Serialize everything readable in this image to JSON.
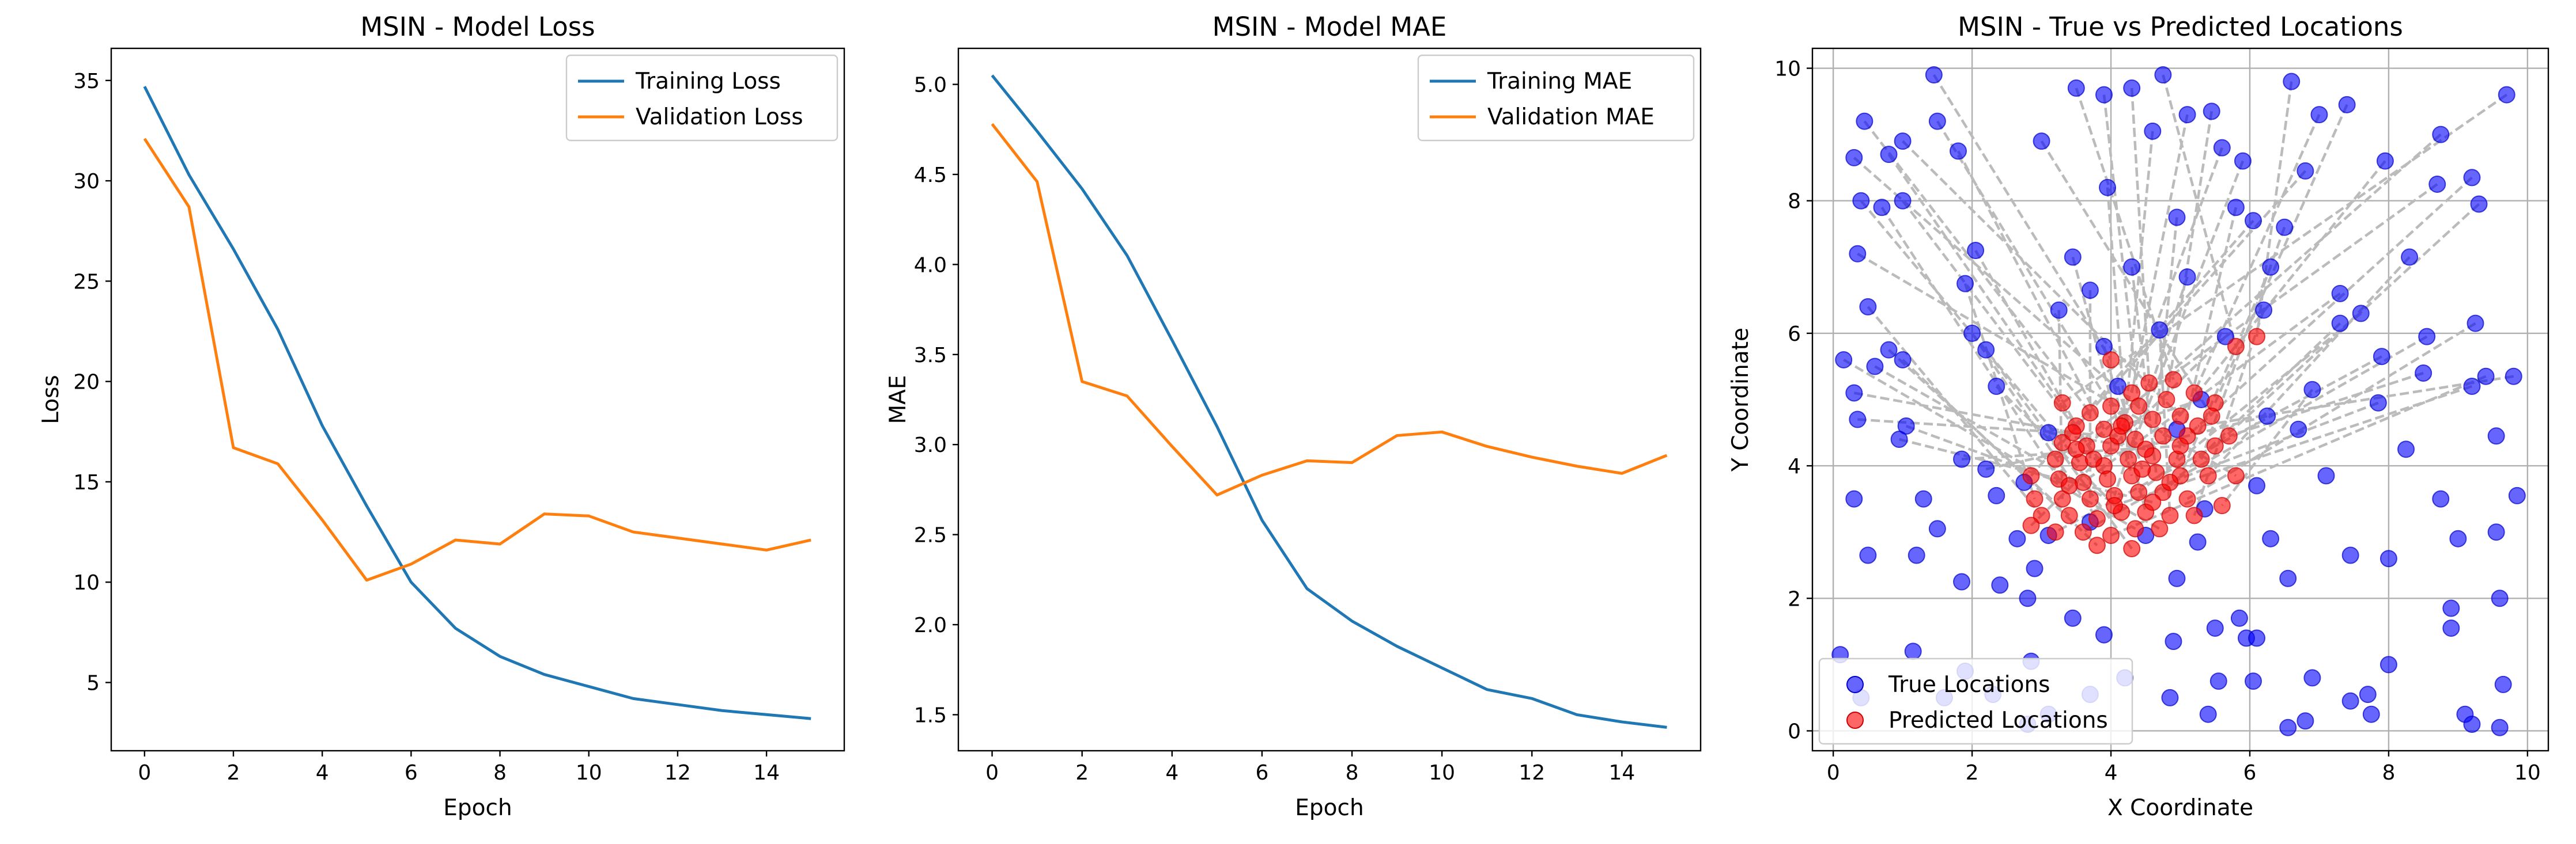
{
  "chart_data": [
    {
      "type": "line",
      "title": "MSIN - Model Loss",
      "xlabel": "Epoch",
      "ylabel": "Loss",
      "xlim": [
        -0.75,
        15.75
      ],
      "ylim": [
        1.6,
        36.6
      ],
      "xticks": [
        0,
        2,
        4,
        6,
        8,
        10,
        12,
        14
      ],
      "yticks": [
        5,
        10,
        15,
        20,
        25,
        30,
        35
      ],
      "grid": false,
      "legend": "top-right",
      "x": [
        0,
        1,
        2,
        3,
        4,
        5,
        6,
        7,
        8,
        9,
        10,
        11,
        12,
        13,
        14,
        15
      ],
      "series": [
        {
          "name": "Training Loss",
          "color": "#1f77b4",
          "values": [
            34.7,
            30.3,
            26.6,
            22.6,
            17.8,
            13.8,
            10.0,
            7.7,
            6.3,
            5.4,
            4.8,
            4.2,
            3.9,
            3.6,
            3.4,
            3.2
          ]
        },
        {
          "name": "Validation Loss",
          "color": "#ff7f0e",
          "values": [
            32.1,
            28.7,
            16.7,
            15.9,
            13.1,
            10.1,
            10.9,
            12.1,
            11.9,
            13.4,
            13.3,
            12.5,
            12.2,
            11.9,
            11.6,
            12.1
          ]
        }
      ]
    },
    {
      "type": "line",
      "title": "MSIN - Model MAE",
      "xlabel": "Epoch",
      "ylabel": "MAE",
      "xlim": [
        -0.75,
        15.75
      ],
      "ylim": [
        1.3,
        5.2
      ],
      "xticks": [
        0,
        2,
        4,
        6,
        8,
        10,
        12,
        14
      ],
      "yticks": [
        1.5,
        2.0,
        2.5,
        3.0,
        3.5,
        4.0,
        4.5,
        5.0
      ],
      "ytick_labels": [
        "1.5",
        "2.0",
        "2.5",
        "3.0",
        "3.5",
        "4.0",
        "4.5",
        "5.0"
      ],
      "grid": false,
      "legend": "top-right",
      "x": [
        0,
        1,
        2,
        3,
        4,
        5,
        6,
        7,
        8,
        9,
        10,
        11,
        12,
        13,
        14,
        15
      ],
      "series": [
        {
          "name": "Training MAE",
          "color": "#1f77b4",
          "values": [
            5.05,
            4.74,
            4.42,
            4.05,
            3.58,
            3.1,
            2.58,
            2.2,
            2.02,
            1.88,
            1.76,
            1.64,
            1.59,
            1.5,
            1.46,
            1.43
          ]
        },
        {
          "name": "Validation MAE",
          "color": "#ff7f0e",
          "values": [
            4.78,
            4.46,
            3.35,
            3.27,
            2.99,
            2.72,
            2.83,
            2.91,
            2.9,
            3.05,
            3.07,
            2.99,
            2.93,
            2.88,
            2.84,
            2.94
          ]
        }
      ]
    },
    {
      "type": "scatter",
      "title": "MSIN - True vs Predicted Locations",
      "xlabel": "X Coordinate",
      "ylabel": "Y Coordinate",
      "xlim": [
        -0.3,
        10.3
      ],
      "ylim": [
        -0.3,
        10.3
      ],
      "xticks": [
        0,
        2,
        4,
        6,
        8,
        10
      ],
      "yticks": [
        0,
        2,
        4,
        6,
        8,
        10
      ],
      "grid": true,
      "legend": "bottom-left",
      "series": [
        {
          "name": "True Locations",
          "color": "#0000ff",
          "points": [
            [
              1.45,
              9.9
            ],
            [
              4.75,
              9.9
            ],
            [
              6.6,
              9.8
            ],
            [
              9.7,
              9.6
            ],
            [
              4.3,
              9.7
            ],
            [
              3.5,
              9.7
            ],
            [
              5.1,
              9.3
            ],
            [
              7.0,
              9.3
            ],
            [
              0.45,
              9.2
            ],
            [
              1.5,
              9.2
            ],
            [
              3.9,
              9.6
            ],
            [
              5.45,
              9.35
            ],
            [
              7.4,
              9.45
            ],
            [
              0.8,
              8.7
            ],
            [
              1.8,
              8.75
            ],
            [
              4.6,
              9.05
            ],
            [
              0.3,
              8.65
            ],
            [
              1.0,
              8.9
            ],
            [
              3.0,
              8.9
            ],
            [
              6.8,
              8.45
            ],
            [
              8.75,
              9.0
            ],
            [
              5.6,
              8.8
            ],
            [
              5.9,
              8.6
            ],
            [
              7.95,
              8.6
            ],
            [
              9.2,
              8.35
            ],
            [
              9.3,
              7.95
            ],
            [
              8.7,
              8.25
            ],
            [
              0.4,
              8.0
            ],
            [
              1.0,
              8.0
            ],
            [
              3.95,
              8.2
            ],
            [
              4.95,
              7.75
            ],
            [
              5.8,
              7.9
            ],
            [
              6.5,
              7.6
            ],
            [
              6.05,
              7.7
            ],
            [
              0.7,
              7.9
            ],
            [
              7.3,
              6.6
            ],
            [
              2.05,
              7.25
            ],
            [
              3.45,
              7.15
            ],
            [
              4.3,
              7.0
            ],
            [
              6.3,
              7.0
            ],
            [
              8.3,
              7.15
            ],
            [
              0.35,
              7.2
            ],
            [
              1.9,
              6.75
            ],
            [
              3.25,
              6.35
            ],
            [
              3.7,
              6.65
            ],
            [
              5.1,
              6.85
            ],
            [
              7.6,
              6.3
            ],
            [
              7.3,
              6.15
            ],
            [
              9.25,
              6.15
            ],
            [
              0.5,
              6.4
            ],
            [
              0.8,
              5.75
            ],
            [
              2.0,
              6.0
            ],
            [
              2.35,
              5.2
            ],
            [
              3.9,
              5.8
            ],
            [
              4.7,
              6.05
            ],
            [
              6.2,
              6.35
            ],
            [
              7.9,
              5.65
            ],
            [
              8.55,
              5.95
            ],
            [
              9.4,
              5.35
            ],
            [
              0.15,
              5.6
            ],
            [
              0.6,
              5.5
            ],
            [
              1.0,
              5.6
            ],
            [
              2.2,
              5.75
            ],
            [
              5.65,
              5.95
            ],
            [
              6.9,
              5.15
            ],
            [
              8.5,
              5.4
            ],
            [
              9.8,
              5.35
            ],
            [
              0.3,
              5.1
            ],
            [
              0.35,
              4.7
            ],
            [
              1.05,
              4.6
            ],
            [
              4.1,
              5.2
            ],
            [
              5.3,
              5.0
            ],
            [
              6.25,
              4.75
            ],
            [
              7.85,
              4.95
            ],
            [
              9.2,
              5.2
            ],
            [
              0.95,
              4.4
            ],
            [
              1.85,
              4.1
            ],
            [
              2.2,
              3.95
            ],
            [
              3.1,
              4.5
            ],
            [
              4.95,
              4.55
            ],
            [
              6.7,
              4.55
            ],
            [
              8.25,
              4.25
            ],
            [
              9.55,
              4.45
            ],
            [
              0.3,
              3.5
            ],
            [
              1.3,
              3.5
            ],
            [
              2.35,
              3.55
            ],
            [
              2.75,
              3.75
            ],
            [
              3.7,
              3.15
            ],
            [
              5.35,
              3.35
            ],
            [
              6.1,
              3.7
            ],
            [
              7.1,
              3.85
            ],
            [
              8.75,
              3.5
            ],
            [
              9.85,
              3.55
            ],
            [
              1.5,
              3.05
            ],
            [
              2.65,
              2.9
            ],
            [
              3.1,
              2.95
            ],
            [
              4.5,
              2.95
            ],
            [
              5.25,
              2.85
            ],
            [
              6.3,
              2.9
            ],
            [
              8.0,
              2.6
            ],
            [
              9.55,
              3.0
            ],
            [
              0.5,
              2.65
            ],
            [
              1.2,
              2.65
            ],
            [
              2.9,
              2.45
            ],
            [
              4.95,
              2.3
            ],
            [
              6.55,
              2.3
            ],
            [
              7.45,
              2.65
            ],
            [
              9.0,
              2.9
            ],
            [
              1.85,
              2.25
            ],
            [
              2.4,
              2.2
            ],
            [
              2.8,
              2.0
            ],
            [
              3.45,
              1.7
            ],
            [
              5.85,
              1.7
            ],
            [
              5.95,
              1.4
            ],
            [
              8.9,
              1.55
            ],
            [
              0.1,
              1.15
            ],
            [
              1.15,
              1.2
            ],
            [
              2.85,
              1.05
            ],
            [
              3.9,
              1.45
            ],
            [
              4.2,
              0.8
            ],
            [
              4.9,
              1.35
            ],
            [
              5.5,
              1.55
            ],
            [
              6.1,
              1.4
            ],
            [
              8.0,
              1.0
            ],
            [
              8.9,
              1.85
            ],
            [
              9.6,
              2.0
            ],
            [
              1.9,
              0.9
            ],
            [
              2.3,
              0.55
            ],
            [
              3.7,
              0.55
            ],
            [
              5.55,
              0.75
            ],
            [
              6.05,
              0.75
            ],
            [
              6.9,
              0.8
            ],
            [
              7.7,
              0.55
            ],
            [
              9.1,
              0.25
            ],
            [
              0.4,
              0.5
            ],
            [
              2.8,
              0.1
            ],
            [
              4.85,
              0.5
            ],
            [
              5.4,
              0.25
            ],
            [
              6.55,
              0.05
            ],
            [
              6.8,
              0.15
            ],
            [
              7.75,
              0.25
            ],
            [
              9.2,
              0.1
            ],
            [
              9.6,
              0.05
            ],
            [
              9.65,
              0.7
            ],
            [
              1.6,
              0.5
            ],
            [
              3.1,
              0.25
            ],
            [
              7.45,
              0.45
            ]
          ]
        },
        {
          "name": "Predicted Locations",
          "color": "#ff0000",
          "points": [
            [
              4.0,
              5.6
            ],
            [
              5.8,
              5.8
            ],
            [
              6.1,
              5.95
            ],
            [
              3.3,
              4.95
            ],
            [
              4.55,
              5.25
            ],
            [
              4.9,
              5.3
            ],
            [
              4.3,
              5.1
            ],
            [
              5.2,
              5.1
            ],
            [
              3.7,
              4.8
            ],
            [
              4.0,
              4.9
            ],
            [
              4.4,
              4.9
            ],
            [
              4.8,
              5.0
            ],
            [
              5.5,
              4.95
            ],
            [
              3.5,
              4.6
            ],
            [
              3.9,
              4.55
            ],
            [
              4.2,
              4.65
            ],
            [
              4.6,
              4.7
            ],
            [
              5.0,
              4.75
            ],
            [
              5.45,
              4.75
            ],
            [
              3.3,
              4.35
            ],
            [
              3.65,
              4.3
            ],
            [
              4.0,
              4.3
            ],
            [
              4.35,
              4.4
            ],
            [
              4.75,
              4.45
            ],
            [
              5.1,
              4.45
            ],
            [
              5.5,
              4.3
            ],
            [
              3.2,
              4.1
            ],
            [
              3.55,
              4.05
            ],
            [
              3.9,
              4.0
            ],
            [
              4.25,
              4.1
            ],
            [
              4.6,
              4.15
            ],
            [
              4.95,
              4.1
            ],
            [
              5.3,
              4.1
            ],
            [
              2.85,
              3.85
            ],
            [
              3.25,
              3.8
            ],
            [
              3.6,
              3.75
            ],
            [
              3.95,
              3.8
            ],
            [
              4.3,
              3.85
            ],
            [
              4.65,
              3.9
            ],
            [
              5.0,
              3.85
            ],
            [
              5.4,
              3.85
            ],
            [
              5.8,
              3.85
            ],
            [
              2.9,
              3.5
            ],
            [
              3.3,
              3.5
            ],
            [
              3.7,
              3.5
            ],
            [
              4.05,
              3.55
            ],
            [
              4.4,
              3.6
            ],
            [
              4.75,
              3.6
            ],
            [
              5.1,
              3.5
            ],
            [
              3.0,
              3.25
            ],
            [
              3.4,
              3.25
            ],
            [
              3.8,
              3.2
            ],
            [
              4.15,
              3.3
            ],
            [
              4.5,
              3.3
            ],
            [
              4.85,
              3.25
            ],
            [
              5.2,
              3.25
            ],
            [
              3.2,
              3.0
            ],
            [
              3.6,
              3.0
            ],
            [
              4.0,
              2.95
            ],
            [
              4.35,
              3.05
            ],
            [
              4.7,
              3.05
            ],
            [
              3.8,
              2.8
            ],
            [
              4.3,
              2.75
            ],
            [
              2.85,
              3.1
            ],
            [
              5.6,
              3.4
            ],
            [
              5.7,
              4.45
            ],
            [
              5.25,
              4.6
            ],
            [
              3.45,
              4.5
            ],
            [
              4.1,
              4.45
            ],
            [
              3.4,
              3.7
            ],
            [
              4.45,
              3.95
            ],
            [
              4.15,
              4.6
            ],
            [
              3.75,
              4.1
            ],
            [
              4.85,
              3.75
            ],
            [
              4.05,
              3.4
            ],
            [
              4.6,
              3.45
            ],
            [
              5.0,
              4.3
            ],
            [
              3.5,
              4.25
            ],
            [
              4.5,
              4.25
            ]
          ]
        }
      ],
      "connector_color": "#bbbbbb"
    }
  ]
}
